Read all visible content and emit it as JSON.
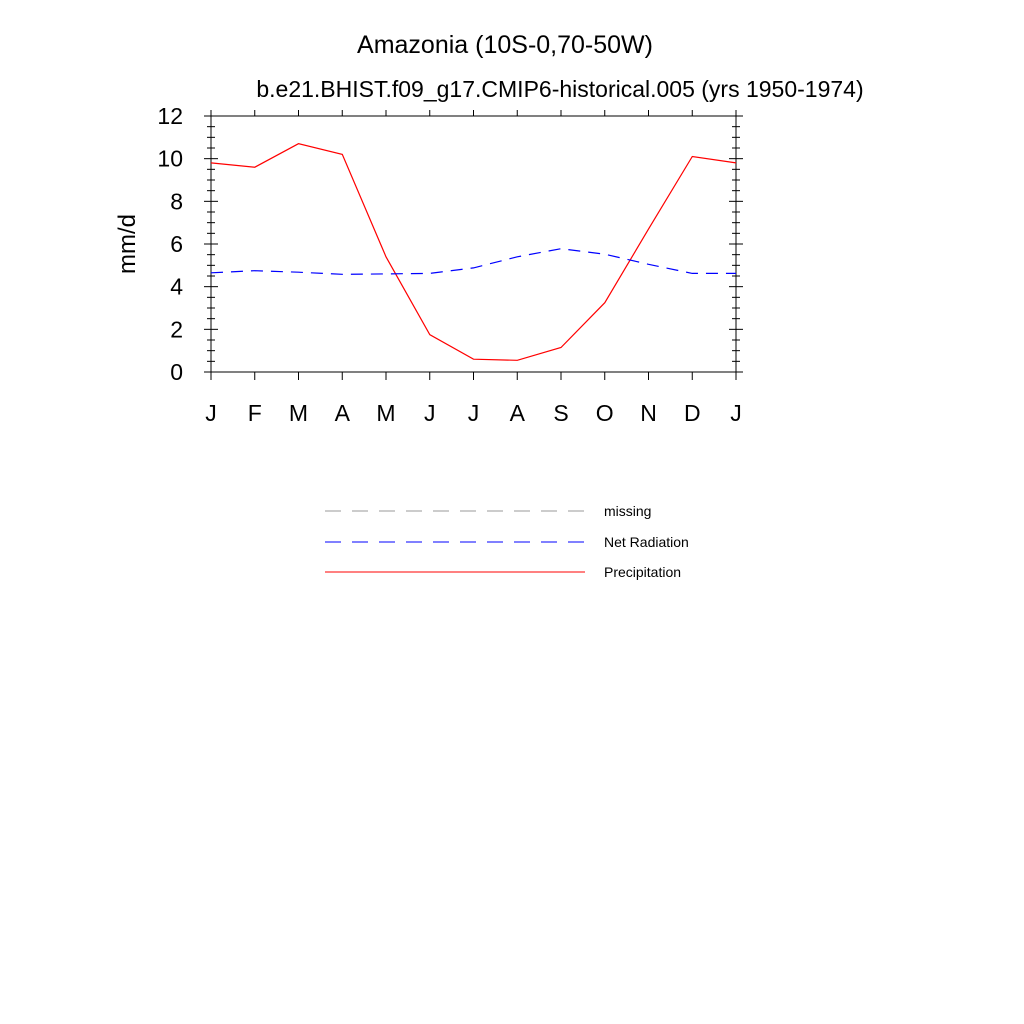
{
  "chart_data": {
    "type": "line",
    "title": "Amazonia (10S-0,70-50W)",
    "subtitle": "b.e21.BHIST.f09_g17.CMIP6-historical.005 (yrs 1950-1974)",
    "xlabel": "",
    "ylabel": "mm/d",
    "categories": [
      "J",
      "F",
      "M",
      "A",
      "M",
      "J",
      "J",
      "A",
      "S",
      "O",
      "N",
      "D",
      "J"
    ],
    "ylim": [
      0,
      12
    ],
    "yticks": [
      0,
      2,
      4,
      6,
      8,
      10,
      12
    ],
    "grid": false,
    "legend_placement": "bottom",
    "series": [
      {
        "name": "Precipitation",
        "color": "#ff0000",
        "style": "solid",
        "values": [
          9.8,
          9.6,
          10.7,
          10.2,
          5.4,
          1.75,
          0.6,
          0.55,
          1.15,
          3.25,
          6.7,
          10.1,
          9.8
        ]
      },
      {
        "name": "Net Radiation",
        "color": "#0000ff",
        "style": "dashed",
        "values": [
          4.65,
          4.75,
          4.68,
          4.58,
          4.6,
          4.62,
          4.88,
          5.4,
          5.78,
          5.52,
          5.05,
          4.62,
          4.62
        ]
      }
    ],
    "legend": [
      {
        "name": "missing",
        "color": "#999999",
        "style": "dashed"
      },
      {
        "name": "Net Radiation",
        "color": "#0000ff",
        "style": "dashed"
      },
      {
        "name": "Precipitation",
        "color": "#ff0000",
        "style": "solid"
      }
    ]
  }
}
